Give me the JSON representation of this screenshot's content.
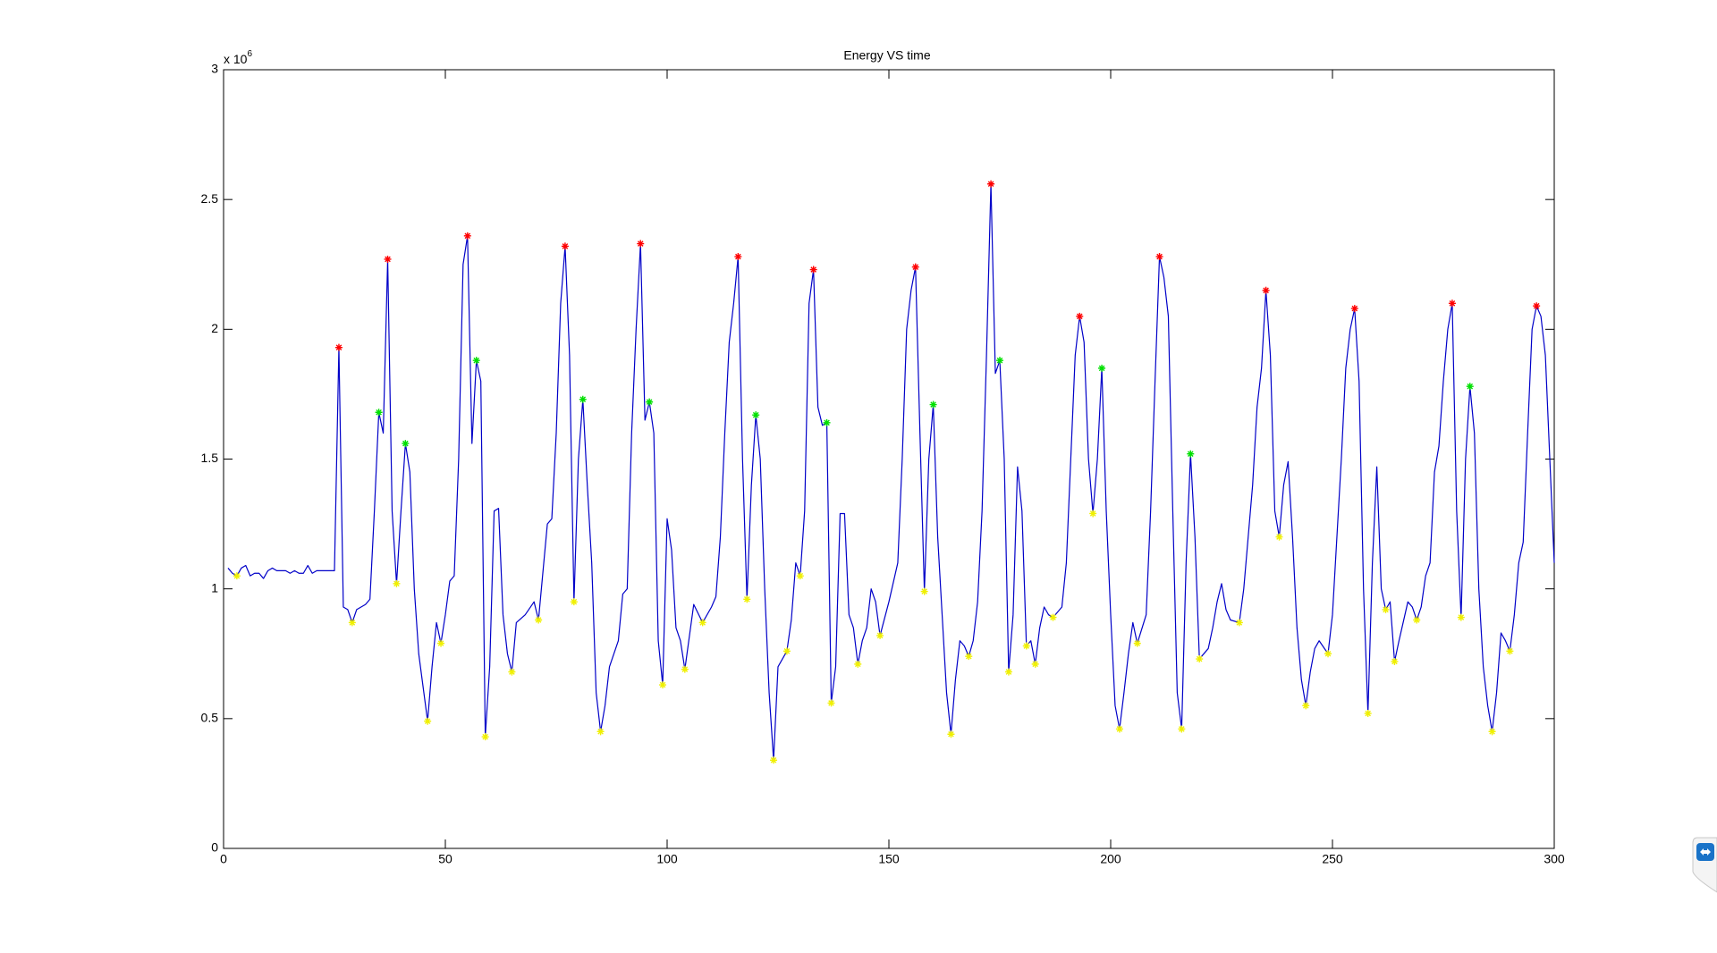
{
  "chart_data": {
    "type": "line",
    "title": "Energy VS time",
    "y_multiplier": {
      "base": "x 10",
      "exponent": "6"
    },
    "xlim": [
      0,
      300
    ],
    "xticks": [
      0,
      50,
      100,
      150,
      200,
      250,
      300
    ],
    "ylim": [
      0,
      3
    ],
    "yticks": [
      0,
      0.5,
      1,
      1.5,
      2,
      2.5,
      3
    ],
    "grid": false,
    "series": [
      {
        "mode": "line",
        "color": "#0000c8",
        "x": [
          1,
          2,
          3,
          4,
          5,
          6,
          7,
          8,
          9,
          10,
          11,
          12,
          13,
          14,
          15,
          16,
          17,
          18,
          19,
          20,
          21,
          22,
          23,
          24,
          25,
          26,
          27,
          28,
          29,
          30,
          32,
          33,
          34,
          35,
          36,
          37,
          38,
          39,
          40,
          41,
          42,
          43,
          44,
          46,
          47,
          48,
          49,
          50,
          51,
          52,
          53,
          54,
          55,
          56,
          57,
          58,
          59,
          60,
          61,
          62,
          63,
          64,
          65,
          66,
          68,
          70,
          71,
          73,
          74,
          75,
          76,
          77,
          78,
          79,
          80,
          81,
          82,
          83,
          84,
          85,
          86,
          87,
          89,
          90,
          91,
          92,
          93,
          94,
          95,
          96,
          97,
          98,
          99,
          100,
          101,
          102,
          103,
          104,
          106,
          108,
          110,
          111,
          112,
          113,
          114,
          115,
          116,
          117,
          118,
          119,
          120,
          121,
          122,
          123,
          124,
          125,
          127,
          128,
          129,
          130,
          131,
          132,
          133,
          134,
          135,
          136,
          137,
          138,
          139,
          140,
          141,
          142,
          143,
          144,
          145,
          146,
          147,
          148,
          150,
          152,
          153,
          154,
          155,
          156,
          157,
          158,
          159,
          160,
          161,
          162,
          163,
          164,
          165,
          166,
          167,
          168,
          169,
          170,
          171,
          172,
          173,
          174,
          175,
          176,
          177,
          178,
          179,
          180,
          181,
          182,
          183,
          184,
          185,
          186,
          187,
          189,
          190,
          191,
          192,
          193,
          194,
          195,
          196,
          197,
          198,
          199,
          200,
          201,
          202,
          203,
          204,
          205,
          206,
          208,
          209,
          210,
          211,
          212,
          213,
          214,
          215,
          216,
          217,
          218,
          219,
          220,
          222,
          223,
          224,
          225,
          226,
          227,
          229,
          230,
          231,
          232,
          233,
          234,
          235,
          236,
          237,
          238,
          239,
          240,
          241,
          242,
          243,
          244,
          245,
          246,
          247,
          249,
          250,
          251,
          252,
          253,
          254,
          255,
          256,
          257,
          258,
          259,
          260,
          261,
          262,
          263,
          264,
          265,
          267,
          268,
          269,
          270,
          271,
          272,
          273,
          274,
          275,
          276,
          277,
          278,
          279,
          280,
          281,
          282,
          283,
          284,
          285,
          286,
          287,
          288,
          289,
          290,
          291,
          292,
          293,
          294,
          295,
          296,
          297,
          298,
          299,
          300
        ],
        "values": [
          1.08,
          1.06,
          1.05,
          1.08,
          1.09,
          1.05,
          1.06,
          1.06,
          1.04,
          1.07,
          1.08,
          1.07,
          1.07,
          1.07,
          1.06,
          1.07,
          1.06,
          1.06,
          1.09,
          1.06,
          1.07,
          1.07,
          1.07,
          1.07,
          1.07,
          1.93,
          0.93,
          0.92,
          0.87,
          0.92,
          0.94,
          0.96,
          1.3,
          1.68,
          1.6,
          2.27,
          1.3,
          1.02,
          1.3,
          1.56,
          1.45,
          1.0,
          0.75,
          0.49,
          0.7,
          0.87,
          0.79,
          0.9,
          1.03,
          1.05,
          1.5,
          2.25,
          2.36,
          1.56,
          1.88,
          1.8,
          0.43,
          0.7,
          1.3,
          1.31,
          0.9,
          0.75,
          0.68,
          0.87,
          0.9,
          0.95,
          0.88,
          1.25,
          1.27,
          1.6,
          2.1,
          2.32,
          1.9,
          0.95,
          1.5,
          1.73,
          1.4,
          1.1,
          0.6,
          0.45,
          0.55,
          0.7,
          0.8,
          0.98,
          1.0,
          1.6,
          2.0,
          2.33,
          1.65,
          1.72,
          1.6,
          0.8,
          0.63,
          1.27,
          1.15,
          0.85,
          0.8,
          0.69,
          0.94,
          0.87,
          0.93,
          0.97,
          1.2,
          1.6,
          1.95,
          2.1,
          2.28,
          1.5,
          0.96,
          1.4,
          1.67,
          1.5,
          1.0,
          0.6,
          0.34,
          0.7,
          0.76,
          0.88,
          1.1,
          1.05,
          1.3,
          2.1,
          2.23,
          1.7,
          1.63,
          1.64,
          0.56,
          0.7,
          1.29,
          1.29,
          0.9,
          0.85,
          0.71,
          0.8,
          0.85,
          1.0,
          0.95,
          0.82,
          0.95,
          1.1,
          1.5,
          2.0,
          2.15,
          2.24,
          1.6,
          0.99,
          1.5,
          1.71,
          1.2,
          0.9,
          0.6,
          0.44,
          0.65,
          0.8,
          0.78,
          0.74,
          0.8,
          0.95,
          1.3,
          1.9,
          2.56,
          1.83,
          1.88,
          1.5,
          0.68,
          0.9,
          1.47,
          1.3,
          0.78,
          0.8,
          0.71,
          0.85,
          0.93,
          0.9,
          0.89,
          0.93,
          1.1,
          1.5,
          1.9,
          2.05,
          1.95,
          1.5,
          1.29,
          1.5,
          1.85,
          1.3,
          0.9,
          0.55,
          0.46,
          0.6,
          0.75,
          0.87,
          0.79,
          0.9,
          1.3,
          1.8,
          2.28,
          2.2,
          2.05,
          1.3,
          0.6,
          0.46,
          1.1,
          1.52,
          1.2,
          0.73,
          0.77,
          0.85,
          0.95,
          1.02,
          0.92,
          0.88,
          0.87,
          1.0,
          1.2,
          1.4,
          1.7,
          1.85,
          2.15,
          1.9,
          1.3,
          1.2,
          1.4,
          1.49,
          1.2,
          0.85,
          0.65,
          0.55,
          0.68,
          0.77,
          0.8,
          0.75,
          0.9,
          1.2,
          1.5,
          1.85,
          2.0,
          2.08,
          1.8,
          1.0,
          0.52,
          1.1,
          1.47,
          1.0,
          0.92,
          0.95,
          0.72,
          0.8,
          0.95,
          0.93,
          0.88,
          0.93,
          1.05,
          1.1,
          1.45,
          1.55,
          1.8,
          2.0,
          2.1,
          1.3,
          0.89,
          1.5,
          1.78,
          1.6,
          1.0,
          0.7,
          0.55,
          0.45,
          0.6,
          0.83,
          0.8,
          0.76,
          0.9,
          1.1,
          1.18,
          1.6,
          2.0,
          2.09,
          2.05,
          1.9,
          1.5,
          1.1
        ]
      },
      {
        "mode": "markers",
        "color": "#ff0000",
        "x": [
          26,
          37,
          55,
          77,
          94,
          116,
          133,
          156,
          173,
          193,
          211,
          235,
          255,
          277,
          296
        ],
        "values": [
          1.93,
          2.27,
          2.36,
          2.32,
          2.33,
          2.28,
          2.23,
          2.24,
          2.56,
          2.05,
          2.28,
          2.15,
          2.08,
          2.1,
          2.09
        ]
      },
      {
        "mode": "markers",
        "color": "#00e000",
        "x": [
          35,
          41,
          57,
          81,
          96,
          120,
          136,
          160,
          175,
          198,
          218,
          281
        ],
        "values": [
          1.68,
          1.56,
          1.88,
          1.73,
          1.72,
          1.67,
          1.64,
          1.71,
          1.88,
          1.85,
          1.52,
          1.78
        ]
      },
      {
        "mode": "markers",
        "color": "#f0f000",
        "x": [
          3,
          29,
          39,
          46,
          49,
          59,
          65,
          71,
          79,
          85,
          99,
          104,
          108,
          118,
          124,
          127,
          130,
          137,
          143,
          148,
          158,
          164,
          168,
          177,
          181,
          183,
          187,
          196,
          202,
          206,
          216,
          220,
          229,
          238,
          244,
          249,
          258,
          262,
          264,
          269,
          279,
          286,
          290
        ],
        "values": [
          1.05,
          0.87,
          1.02,
          0.49,
          0.79,
          0.43,
          0.68,
          0.88,
          0.95,
          0.45,
          0.63,
          0.69,
          0.87,
          0.96,
          0.34,
          0.76,
          1.05,
          0.56,
          0.71,
          0.82,
          0.99,
          0.44,
          0.74,
          0.68,
          0.78,
          0.71,
          0.89,
          1.29,
          0.46,
          0.79,
          0.46,
          0.73,
          0.87,
          1.2,
          0.55,
          0.75,
          0.52,
          0.92,
          0.72,
          0.88,
          0.89,
          0.45,
          0.76
        ]
      }
    ]
  }
}
